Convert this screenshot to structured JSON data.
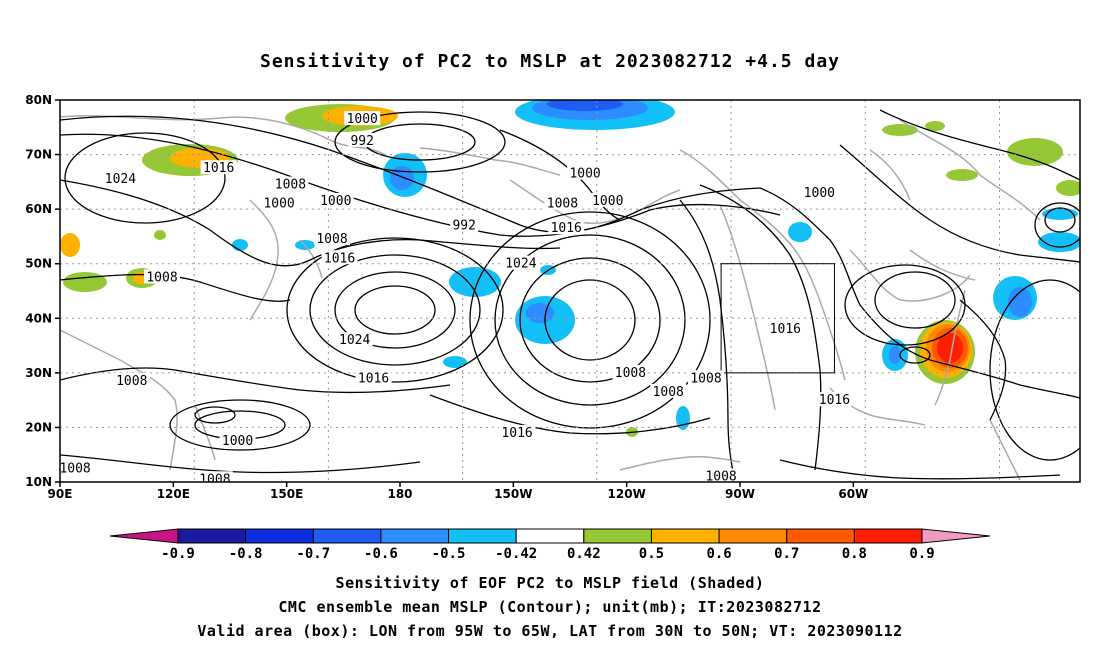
{
  "figure": {
    "title": "Sensitivity of PC2 to MSLP at 2023082712 +4.5 day",
    "caption_lines": [
      "Sensitivity of EOF PC2 to MSLP field (Shaded)",
      "CMC ensemble mean MSLP (Contour); unit(mb); IT:2023082712",
      "Valid area (box): LON from 95W to 65W, LAT from 30N to 50N; VT: 2023090112"
    ]
  },
  "map": {
    "lat_ticks": [
      "80N",
      "70N",
      "60N",
      "50N",
      "40N",
      "30N",
      "20N",
      "10N"
    ],
    "lon_ticks": [
      "90E",
      "120E",
      "150E",
      "180",
      "150W",
      "120W",
      "90W",
      "60W"
    ],
    "grid": "dotted",
    "valid_box": {
      "lon_from": "95W",
      "lon_to": "65W",
      "lat_from": "30N",
      "lat_to": "50N"
    },
    "contour_labels": [
      {
        "text": "1000",
        "lon": 170,
        "lat": 76.5
      },
      {
        "text": "992",
        "lon": 170,
        "lat": 72.5
      },
      {
        "text": "1024",
        "lon": 106,
        "lat": 65.5
      },
      {
        "text": "1016",
        "lon": 132,
        "lat": 67.5
      },
      {
        "text": "1008",
        "lon": 151,
        "lat": 64.5
      },
      {
        "text": "1000",
        "lon": 148,
        "lat": 61
      },
      {
        "text": "1000",
        "lon": 163,
        "lat": 61.5
      },
      {
        "text": "1008",
        "lon": 162,
        "lat": 54.5
      },
      {
        "text": "1016",
        "lon": 164,
        "lat": 51
      },
      {
        "text": "992",
        "lon": -163,
        "lat": 57
      },
      {
        "text": "1000",
        "lon": -131,
        "lat": 66.5
      },
      {
        "text": "1008",
        "lon": -137,
        "lat": 61
      },
      {
        "text": "1000",
        "lon": -125,
        "lat": 61.5
      },
      {
        "text": "1016",
        "lon": -136,
        "lat": 56.5
      },
      {
        "text": "1024",
        "lon": -148,
        "lat": 50
      },
      {
        "text": "1008",
        "lon": 117,
        "lat": 47.5
      },
      {
        "text": "1024",
        "lon": 168,
        "lat": 36
      },
      {
        "text": "1008",
        "lon": 109,
        "lat": 28.5
      },
      {
        "text": "1016",
        "lon": 173,
        "lat": 29
      },
      {
        "text": "1000",
        "lon": 137,
        "lat": 17.5
      },
      {
        "text": "1016",
        "lon": -149,
        "lat": 19
      },
      {
        "text": "1008",
        "lon": -119,
        "lat": 30
      },
      {
        "text": "1008",
        "lon": -109,
        "lat": 26.5
      },
      {
        "text": "1008",
        "lon": -99,
        "lat": 29
      },
      {
        "text": "1016",
        "lon": -78,
        "lat": 38
      },
      {
        "text": "1000",
        "lon": -69,
        "lat": 63
      },
      {
        "text": "1016",
        "lon": -65,
        "lat": 25
      },
      {
        "text": "1008",
        "lon": 94,
        "lat": 12.5
      },
      {
        "text": "1008",
        "lon": 131,
        "lat": 10.5
      },
      {
        "text": "1008",
        "lon": -95,
        "lat": 11
      }
    ]
  },
  "colorbar": {
    "labels": [
      "-0.9",
      "-0.8",
      "-0.7",
      "-0.6",
      "-0.5",
      "-0.42",
      "0.42",
      "0.5",
      "0.6",
      "0.7",
      "0.8",
      "0.9"
    ],
    "colors": [
      "#1a1aa0",
      "#0a2ee0",
      "#1e5cf5",
      "#2d8cff",
      "#12c0f7",
      "#ffffff",
      "#96c836",
      "#ffb100",
      "#ff8a00",
      "#ff5a00",
      "#ff1e00"
    ],
    "low_end_color": "#c71585",
    "high_end_color": "#f49ac2"
  }
}
